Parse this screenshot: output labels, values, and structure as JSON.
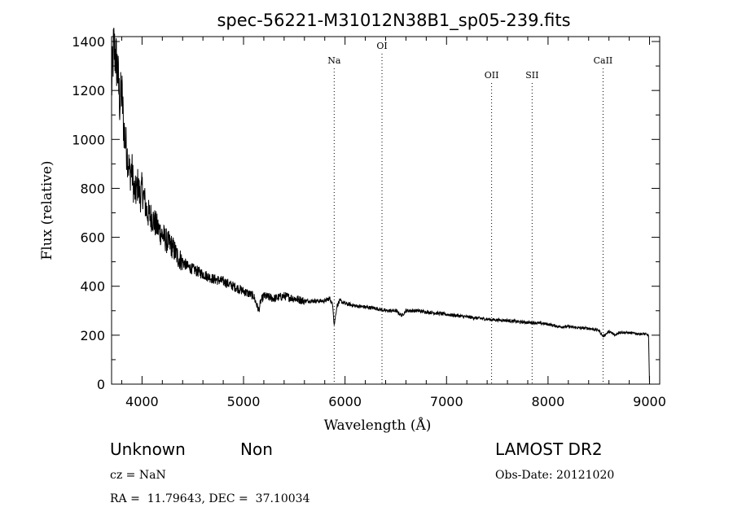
{
  "chart_data": {
    "type": "line",
    "title": "spec-56221-M31012N38B1_sp05-239.fits",
    "xlabel": "Wavelength (Å)",
    "ylabel": "Flux (relative)",
    "xlim": [
      3700,
      9100
    ],
    "ylim": [
      0,
      1420
    ],
    "xticks": [
      4000,
      5000,
      6000,
      7000,
      8000,
      9000
    ],
    "yticks": [
      0,
      200,
      400,
      600,
      800,
      1000,
      1200,
      1400
    ],
    "grid": false,
    "series": [
      {
        "x": [
          3700,
          3720,
          3740,
          3760,
          3780,
          3800,
          3820,
          3840,
          3860,
          3880,
          3900,
          3920,
          3940,
          3960,
          3980,
          4000,
          4050,
          4100,
          4150,
          4200,
          4250,
          4300,
          4350,
          4400,
          4450,
          4500,
          4600,
          4700,
          4800,
          4900,
          5000,
          5100,
          5150,
          5170,
          5200,
          5300,
          5400,
          5500,
          5600,
          5700,
          5800,
          5850,
          5880,
          5893,
          5900,
          5920,
          5950,
          6000,
          6100,
          6200,
          6300,
          6400,
          6500,
          6560,
          6600,
          6700,
          6800,
          6900,
          7000,
          7100,
          7200,
          7300,
          7400,
          7500,
          7600,
          7700,
          7800,
          7900,
          8000,
          8100,
          8200,
          8300,
          8400,
          8500,
          8542,
          8600,
          8662,
          8700,
          8800,
          8900,
          8950,
          8990,
          9000
        ],
        "values": [
          1200,
          1380,
          1340,
          1280,
          1150,
          1200,
          1050,
          980,
          920,
          860,
          880,
          790,
          780,
          820,
          760,
          800,
          700,
          680,
          640,
          610,
          580,
          560,
          520,
          500,
          480,
          470,
          450,
          430,
          420,
          400,
          380,
          360,
          300,
          340,
          360,
          350,
          360,
          350,
          340,
          340,
          340,
          350,
          320,
          240,
          260,
          320,
          340,
          330,
          320,
          315,
          310,
          300,
          300,
          280,
          300,
          300,
          295,
          290,
          285,
          280,
          275,
          270,
          265,
          262,
          260,
          255,
          252,
          250,
          245,
          235,
          235,
          230,
          228,
          220,
          195,
          215,
          200,
          212,
          210,
          205,
          205,
          200,
          0
        ]
      }
    ],
    "lines": [
      {
        "label": "Na",
        "x": 5893
      },
      {
        "label": "OI",
        "x": 6364
      },
      {
        "label": "OII",
        "x": 7444
      },
      {
        "label": "SII",
        "x": 7843
      },
      {
        "label": "CaII",
        "x": 8542
      }
    ]
  },
  "footer": {
    "class_label": "Unknown",
    "subclass_label": "Non",
    "survey": "LAMOST DR2",
    "cz": "cz = NaN",
    "obs_date": "Obs-Date: 20121020",
    "coords": "RA =  11.79643, DEC =  37.10034"
  }
}
